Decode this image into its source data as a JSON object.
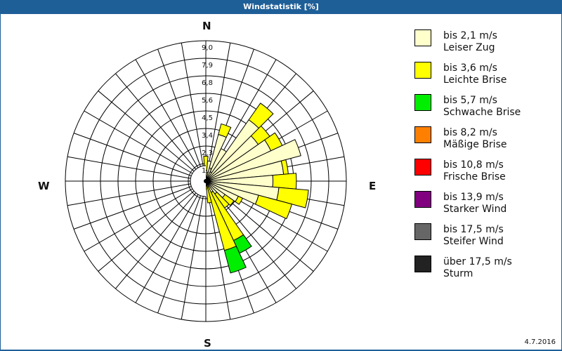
{
  "title": "Windstatistik [%]",
  "date": "4.7.2016",
  "compass": {
    "n": "N",
    "e": "E",
    "s": "S",
    "w": "W"
  },
  "legend": [
    {
      "line1": "bis 2,1 m/s",
      "line2": "Leiser Zug",
      "color": "#ffffcc"
    },
    {
      "line1": "bis 3,6 m/s",
      "line2": "Leichte Brise",
      "color": "#ffff00"
    },
    {
      "line1": "bis 5,7 m/s",
      "line2": "Schwache Brise",
      "color": "#00ee00"
    },
    {
      "line1": "bis 8,2 m/s",
      "line2": "Mäßige Brise",
      "color": "#ff8000"
    },
    {
      "line1": "bis 10,8 m/s",
      "line2": "Frische Brise",
      "color": "#ff0000"
    },
    {
      "line1": "bis 13,9 m/s",
      "line2": "Starker Wind",
      "color": "#800080"
    },
    {
      "line1": "bis 17,5 m/s",
      "line2": "Steifer Wind",
      "color": "#666666"
    },
    {
      "line1": "über 17,5 m/s",
      "line2": "Sturm",
      "color": "#222222"
    }
  ],
  "chart_data": {
    "type": "wind-rose",
    "title": "Windstatistik [%]",
    "radial_unit": "%",
    "radial_ticks": [
      "1,1",
      "2,3",
      "3,4",
      "4,5",
      "5,6",
      "6,8",
      "7,9",
      "9,0"
    ],
    "rmax": 9.0,
    "sector_width_deg": 10,
    "directions_deg": [
      0,
      10,
      20,
      30,
      40,
      50,
      60,
      70,
      80,
      90,
      100,
      110,
      120,
      130,
      140,
      150,
      160,
      170,
      180,
      190,
      200,
      210,
      220,
      230,
      240,
      250,
      260,
      270,
      280,
      290,
      300,
      310,
      320,
      330,
      340,
      350
    ],
    "series": [
      {
        "name": "bis 2,1 m/s (Leiser Zug)",
        "values": [
          0.7,
          1.3,
          3.1,
          2.3,
          4.8,
          4.1,
          4.6,
          6.3,
          5.0,
          4.3,
          4.7,
          3.5,
          2.3,
          1.5,
          1.0,
          0.8,
          0.4,
          0.1,
          0.3,
          0.2,
          0.1,
          0.1,
          0.1,
          0.0,
          0.0,
          0.0,
          0.0,
          0.0,
          0.0,
          0.0,
          0.0,
          0.0,
          0.0,
          0.0,
          0.1,
          0.1
        ]
      },
      {
        "name": "bis 3,6 m/s (Leichte Brise)",
        "values": [
          0.9,
          0.0,
          0.7,
          0.0,
          1.3,
          0.9,
          0.8,
          0.0,
          0.3,
          1.5,
          1.9,
          2.2,
          0.3,
          0.7,
          1.1,
          3.4,
          4.2,
          1.3,
          0.2,
          0.2,
          0.0,
          0.0,
          0.0,
          0.0,
          0.0,
          0.0,
          0.0,
          0.0,
          0.0,
          0.0,
          0.0,
          0.0,
          0.0,
          0.0,
          0.0,
          0.0
        ]
      },
      {
        "name": "bis 5,7 m/s (Schwache Brise)",
        "values": [
          0,
          0,
          0,
          0,
          0,
          0,
          0,
          0,
          0,
          0,
          0,
          0,
          0,
          0,
          0,
          0.9,
          1.5,
          0,
          0,
          0,
          0,
          0,
          0,
          0,
          0,
          0,
          0,
          0,
          0,
          0,
          0,
          0,
          0,
          0,
          0,
          0
        ]
      },
      {
        "name": "bis 8,2 m/s (Mäßige Brise)",
        "values": [
          0,
          0,
          0,
          0,
          0,
          0,
          0,
          0,
          0,
          0,
          0,
          0,
          0,
          0,
          0,
          0,
          0,
          0,
          0,
          0,
          0,
          0,
          0,
          0,
          0,
          0,
          0,
          0,
          0,
          0,
          0,
          0,
          0,
          0,
          0,
          0
        ]
      },
      {
        "name": "bis 10,8 m/s (Frische Brise)",
        "values": [
          0,
          0,
          0,
          0,
          0,
          0,
          0,
          0,
          0,
          0,
          0,
          0,
          0,
          0,
          0,
          0,
          0,
          0,
          0,
          0,
          0,
          0,
          0,
          0,
          0,
          0,
          0,
          0,
          0,
          0,
          0,
          0,
          0,
          0,
          0,
          0
        ]
      },
      {
        "name": "bis 13,9 m/s (Starker Wind)",
        "values": [
          0,
          0,
          0,
          0,
          0,
          0,
          0,
          0,
          0,
          0,
          0,
          0,
          0,
          0,
          0,
          0,
          0,
          0,
          0,
          0,
          0,
          0,
          0,
          0,
          0,
          0,
          0,
          0,
          0,
          0,
          0,
          0,
          0,
          0,
          0,
          0
        ]
      },
      {
        "name": "bis 17,5 m/s (Steifer Wind)",
        "values": [
          0,
          0,
          0,
          0,
          0,
          0,
          0,
          0,
          0,
          0,
          0,
          0,
          0,
          0,
          0,
          0,
          0,
          0,
          0,
          0,
          0,
          0,
          0,
          0,
          0,
          0,
          0,
          0,
          0,
          0,
          0,
          0,
          0,
          0,
          0,
          0
        ]
      },
      {
        "name": "über 17,5 m/s (Sturm)",
        "values": [
          0,
          0,
          0,
          0,
          0,
          0,
          0,
          0,
          0,
          0,
          0,
          0,
          0,
          0,
          0,
          0,
          0,
          0,
          0,
          0,
          0,
          0,
          0,
          0,
          0,
          0,
          0,
          0,
          0,
          0,
          0,
          0,
          0,
          0,
          0,
          0
        ]
      }
    ],
    "legend_position": "right",
    "grid": true
  }
}
